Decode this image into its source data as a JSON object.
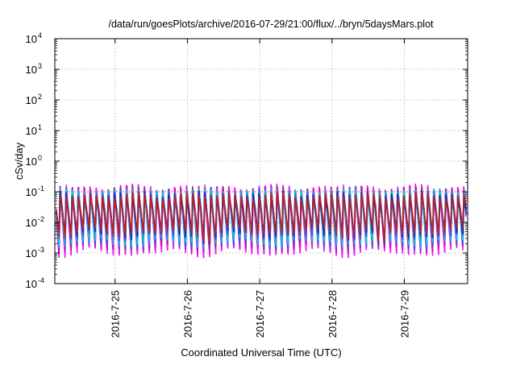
{
  "chart_data": {
    "type": "line",
    "title": "/data/run/goesPlots/archive/2016-07-29/21:00/flux/../bryn/5daysMars.plot",
    "xlabel": "Coordinated Universal Time (UTC)",
    "ylabel": "cSv/day",
    "x_axis": {
      "min": "2016-07-24T04:00",
      "max": "2016-07-29T21:00",
      "tick_labels": [
        "2016-7-25",
        "2016-7-26",
        "2016-7-27",
        "2016-7-28",
        "2016-7-29"
      ]
    },
    "y_axis": {
      "scale": "log",
      "min": 0.0001,
      "max": 10000,
      "tick_labels": [
        {
          "base": "10",
          "exp": "4"
        },
        {
          "base": "10",
          "exp": "3"
        },
        {
          "base": "10",
          "exp": "2"
        },
        {
          "base": "10",
          "exp": "1"
        },
        {
          "base": "10",
          "exp": "0"
        },
        {
          "base": "10",
          "exp": "-1"
        },
        {
          "base": "10",
          "exp": "-2"
        },
        {
          "base": "10",
          "exp": "-3"
        },
        {
          "base": "10",
          "exp": "-4"
        }
      ]
    },
    "grid": true,
    "legend": "none",
    "reference_line": {
      "y": 0.1,
      "color": "#e06050"
    },
    "sawtooth": {
      "cycles_per_day": 12,
      "day_peak_range": [
        0.06,
        0.15
      ],
      "day_trough_range": [
        0.001,
        0.006
      ],
      "deep_dips": [
        "2016-07-26T06:00",
        "2016-07-28T16:00"
      ],
      "deep_dip_value": 0.002
    },
    "series_colors": [
      "#ff00ff",
      "#ee22ee",
      "#d000d0",
      "#a0309a",
      "#2060ff",
      "#30a0ff",
      "#00d0d0",
      "#00c8c0",
      "#5050e0",
      "#0030c0",
      "#c02020"
    ]
  }
}
